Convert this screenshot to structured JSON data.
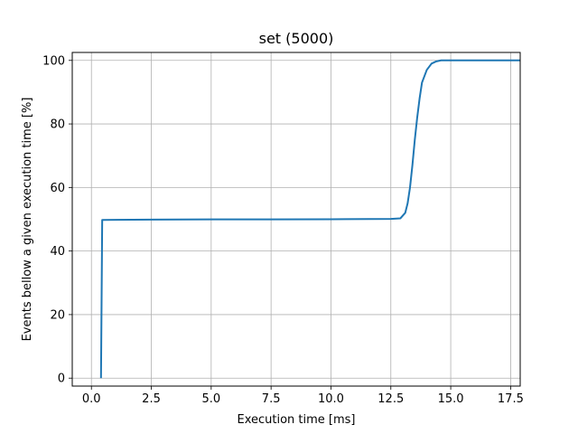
{
  "chart_data": {
    "type": "line",
    "title": "set (5000)",
    "xlabel": "Execution time [ms]",
    "ylabel": "Events bellow a given execution time [%]",
    "xlim": [
      -0.8,
      17.9
    ],
    "ylim": [
      -2.5,
      102.5
    ],
    "xticks": [
      0.0,
      2.5,
      5.0,
      7.5,
      10.0,
      12.5,
      15.0,
      17.5
    ],
    "xtick_labels": [
      "0.0",
      "2.5",
      "5.0",
      "7.5",
      "10.0",
      "12.5",
      "15.0",
      "17.5"
    ],
    "yticks": [
      0,
      20,
      40,
      60,
      80,
      100
    ],
    "ytick_labels": [
      "0",
      "20",
      "40",
      "60",
      "80",
      "100"
    ],
    "grid": true,
    "series": [
      {
        "color": "#1f77b4",
        "x": [
          0.4,
          0.45,
          0.5,
          2.5,
          5.0,
          7.5,
          10.0,
          12.5,
          12.9,
          13.1,
          13.2,
          13.3,
          13.4,
          13.5,
          13.6,
          13.7,
          13.8,
          14.0,
          14.2,
          14.4,
          14.6,
          15.0,
          17.9
        ],
        "y": [
          0,
          49.8,
          49.8,
          49.9,
          49.95,
          49.95,
          50.0,
          50.1,
          50.3,
          52,
          55,
          60,
          67,
          75,
          82,
          88,
          93,
          97,
          99,
          99.7,
          100,
          100,
          100
        ]
      }
    ]
  }
}
